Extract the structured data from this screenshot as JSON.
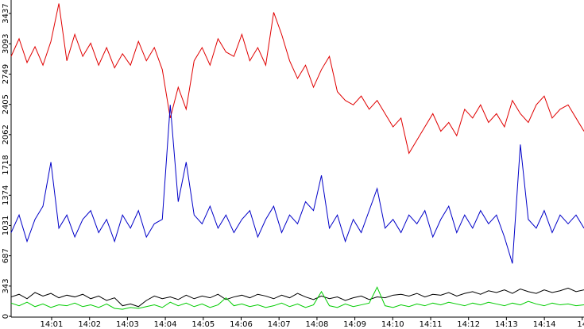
{
  "chart_data": {
    "type": "line",
    "ylim": [
      0,
      3590
    ],
    "yticks": [
      0,
      343,
      687,
      1031,
      1374,
      1718,
      2062,
      2405,
      2749,
      3093,
      3437
    ],
    "xlim": [
      0,
      72
    ],
    "xticks": [
      {
        "value": 5.09,
        "label": "14:01"
      },
      {
        "value": 9.86,
        "label": "14:02"
      },
      {
        "value": 14.62,
        "label": "14:03"
      },
      {
        "value": 19.38,
        "label": "14:04"
      },
      {
        "value": 24.15,
        "label": "14:05"
      },
      {
        "value": 28.91,
        "label": "14:06"
      },
      {
        "value": 33.67,
        "label": "14:07"
      },
      {
        "value": 38.44,
        "label": "14:08"
      },
      {
        "value": 43.2,
        "label": "14:09"
      },
      {
        "value": 47.96,
        "label": "14:10"
      },
      {
        "value": 52.73,
        "label": "14:11"
      },
      {
        "value": 57.49,
        "label": "14:12"
      },
      {
        "value": 62.25,
        "label": "14:13"
      },
      {
        "value": 67.02,
        "label": "14:14"
      },
      {
        "value": 71.78,
        "label": "14"
      }
    ],
    "series": [
      {
        "color": "#e00000",
        "values": [
          2950,
          3150,
          2880,
          3060,
          2850,
          3120,
          3550,
          2900,
          3200,
          2950,
          3100,
          2850,
          3050,
          2820,
          2980,
          2850,
          3120,
          2900,
          3050,
          2800,
          2250,
          2600,
          2350,
          2900,
          3050,
          2850,
          3150,
          3000,
          2950,
          3200,
          2900,
          3050,
          2850,
          3450,
          3200,
          2900,
          2700,
          2850,
          2600,
          2800,
          2950,
          2550,
          2450,
          2400,
          2500,
          2350,
          2450,
          2300,
          2150,
          2250,
          1850,
          2000,
          2150,
          2300,
          2100,
          2200,
          2050,
          2350,
          2250,
          2400,
          2200,
          2300,
          2150,
          2450,
          2300,
          2200,
          2400,
          2500,
          2250,
          2350,
          2400,
          2250,
          2100
        ]
      },
      {
        "color": "#0000c8",
        "values": [
          950,
          1150,
          850,
          1100,
          1250,
          1750,
          1000,
          1150,
          900,
          1100,
          1200,
          950,
          1100,
          850,
          1150,
          1000,
          1200,
          900,
          1050,
          1100,
          2400,
          1300,
          1750,
          1150,
          1050,
          1250,
          1000,
          1150,
          950,
          1100,
          1200,
          900,
          1100,
          1250,
          950,
          1150,
          1050,
          1300,
          1200,
          1600,
          1000,
          1150,
          850,
          1100,
          950,
          1200,
          1450,
          1000,
          1100,
          950,
          1150,
          1050,
          1200,
          900,
          1100,
          1250,
          950,
          1150,
          1000,
          1200,
          1050,
          1150,
          900,
          600,
          1950,
          1100,
          1000,
          1200,
          950,
          1150,
          1050,
          1150,
          1000
        ]
      },
      {
        "color": "#000000",
        "values": [
          220,
          250,
          200,
          270,
          230,
          260,
          210,
          240,
          220,
          250,
          200,
          230,
          180,
          210,
          120,
          140,
          110,
          180,
          230,
          200,
          220,
          190,
          240,
          200,
          230,
          210,
          250,
          190,
          220,
          240,
          210,
          250,
          230,
          200,
          240,
          210,
          260,
          220,
          190,
          230,
          200,
          220,
          180,
          210,
          230,
          190,
          220,
          210,
          240,
          250,
          230,
          260,
          220,
          250,
          240,
          270,
          230,
          260,
          280,
          250,
          290,
          270,
          300,
          260,
          310,
          280,
          260,
          300,
          270,
          290,
          320,
          280,
          300
        ]
      },
      {
        "color": "#00cc00",
        "values": [
          150,
          120,
          160,
          110,
          140,
          100,
          130,
          120,
          150,
          110,
          130,
          100,
          140,
          90,
          80,
          100,
          90,
          110,
          130,
          100,
          160,
          120,
          150,
          110,
          140,
          100,
          130,
          210,
          120,
          140,
          110,
          130,
          100,
          120,
          150,
          110,
          140,
          100,
          130,
          280,
          120,
          100,
          140,
          110,
          130,
          150,
          330,
          120,
          100,
          130,
          110,
          140,
          120,
          150,
          130,
          160,
          140,
          120,
          150,
          130,
          160,
          140,
          120,
          150,
          130,
          170,
          140,
          120,
          150,
          130,
          140,
          120,
          130
        ]
      }
    ]
  }
}
